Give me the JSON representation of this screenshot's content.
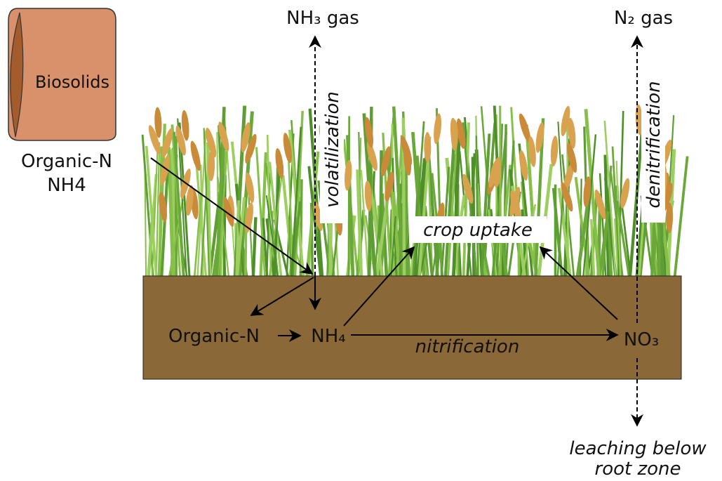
{
  "bag": {
    "label": "Biosolids",
    "contents": [
      "Organic-N",
      "NH4"
    ]
  },
  "gases": {
    "ammonia": "NH₃ gas",
    "nitrogen": "N₂ gas"
  },
  "processes": {
    "volatilization": "volatilization",
    "denitrification": "denitrification",
    "crop_uptake": "crop uptake",
    "nitrification": "nitrification",
    "leaching": [
      "leaching below",
      "root zone"
    ]
  },
  "soil": {
    "organic_n": "Organic-N",
    "ammonium": "NH₄",
    "nitrate": "NO₃"
  }
}
